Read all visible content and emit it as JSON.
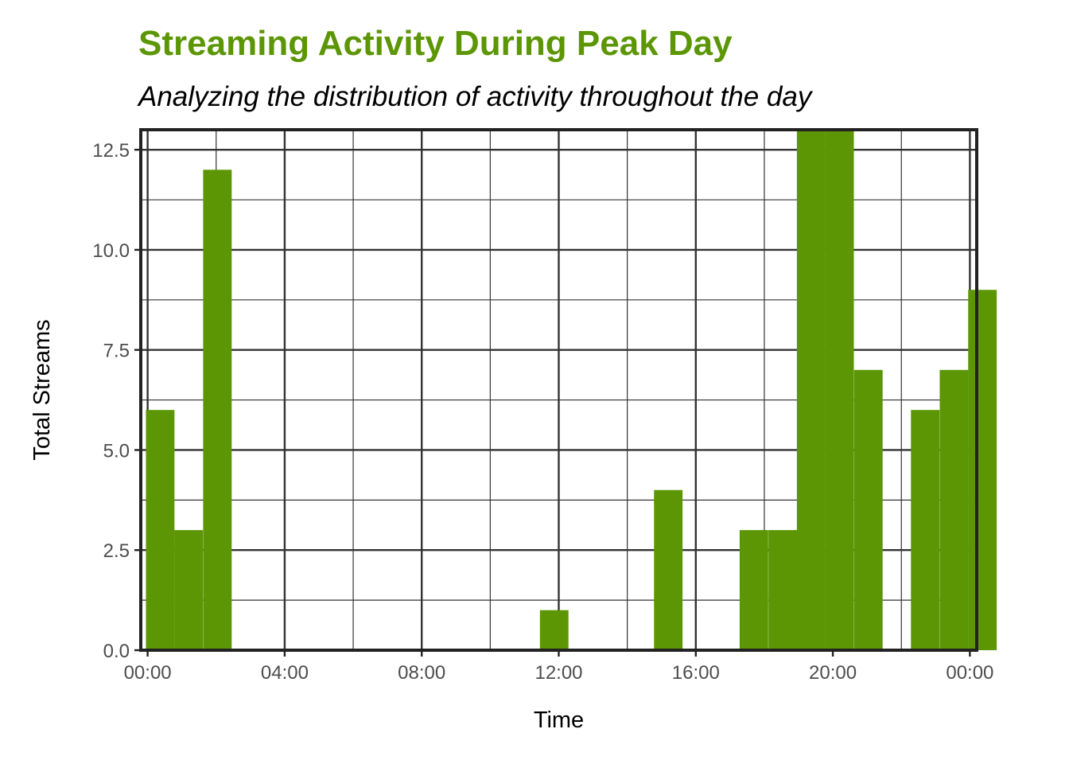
{
  "chart_data": {
    "type": "bar",
    "title": "Streaming Activity During Peak Day",
    "subtitle": "Analyzing the distribution of activity throughout the day",
    "xlabel": "Time",
    "ylabel": "Total Streams",
    "xlim_hours": [
      -0.2,
      24.2
    ],
    "ylim": [
      0,
      13
    ],
    "x_ticks": [
      {
        "hour": 0,
        "label": "00:00"
      },
      {
        "hour": 4,
        "label": "04:00"
      },
      {
        "hour": 8,
        "label": "08:00"
      },
      {
        "hour": 12,
        "label": "12:00"
      },
      {
        "hour": 16,
        "label": "16:00"
      },
      {
        "hour": 20,
        "label": "20:00"
      },
      {
        "hour": 24,
        "label": "00:00"
      }
    ],
    "y_ticks": [
      {
        "value": 0,
        "label": "0.0"
      },
      {
        "value": 2.5,
        "label": "2.5"
      },
      {
        "value": 5,
        "label": "5.0"
      },
      {
        "value": 7.5,
        "label": "7.5"
      },
      {
        "value": 10,
        "label": "10.0"
      },
      {
        "value": 12.5,
        "label": "12.5"
      }
    ],
    "bin_width_hours": 0.8333,
    "bins": [
      {
        "start": -0.05,
        "value": 6
      },
      {
        "start": 0.78,
        "value": 3
      },
      {
        "start": 1.62,
        "value": 12
      },
      {
        "start": 11.45,
        "value": 1
      },
      {
        "start": 14.78,
        "value": 4
      },
      {
        "start": 17.28,
        "value": 3
      },
      {
        "start": 18.12,
        "value": 3
      },
      {
        "start": 18.95,
        "value": 13
      },
      {
        "start": 19.78,
        "value": 13
      },
      {
        "start": 20.62,
        "value": 7
      },
      {
        "start": 22.28,
        "value": 6
      },
      {
        "start": 23.12,
        "value": 7
      },
      {
        "start": 23.95,
        "value": 9
      }
    ],
    "grid": true,
    "legend": "none",
    "colors": {
      "bar": "#5c9604",
      "title": "#5c9604",
      "grid": "#333333",
      "frame": "#222222"
    }
  }
}
